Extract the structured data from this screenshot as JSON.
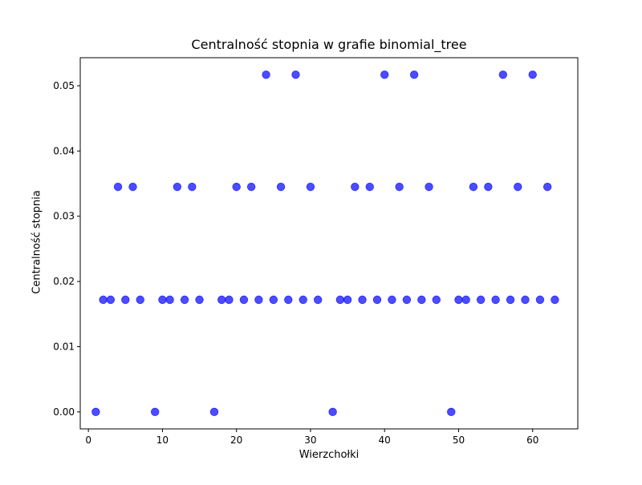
{
  "chart_data": {
    "type": "scatter",
    "title": "Centralność stopnia w grafie binomial_tree",
    "xlabel": "Wierzchołki",
    "ylabel": "Centralność stopnia",
    "xlim": [
      -1.1,
      66.1
    ],
    "ylim": [
      -0.0026,
      0.0543
    ],
    "x_ticks": [
      0,
      10,
      20,
      30,
      40,
      50,
      60
    ],
    "y_ticks": [
      0.0,
      0.01,
      0.02,
      0.03,
      0.04,
      0.05
    ],
    "y_tick_labels": [
      "0.00",
      "0.01",
      "0.02",
      "0.03",
      "0.04",
      "0.05"
    ],
    "grid": false,
    "marker_color": "#0000ff",
    "marker_alpha": 0.7,
    "series": [
      {
        "x": [
          1,
          2,
          3,
          4,
          5,
          6,
          7,
          9,
          10,
          11,
          12,
          13,
          14,
          15,
          17,
          18,
          19,
          20,
          21,
          22,
          23,
          24,
          25,
          26,
          27,
          28,
          29,
          30,
          31,
          33,
          34,
          35,
          36,
          37,
          38,
          39,
          40,
          41,
          42,
          43,
          44,
          45,
          46,
          47,
          49,
          50,
          51,
          52,
          53,
          54,
          55,
          56,
          57,
          58,
          59,
          60,
          61,
          62,
          63
        ],
        "y": [
          0.0,
          0.0172,
          0.0172,
          0.0345,
          0.0172,
          0.0345,
          0.0172,
          0.0,
          0.0172,
          0.0172,
          0.0345,
          0.0172,
          0.0345,
          0.0172,
          0.0,
          0.0172,
          0.0172,
          0.0345,
          0.0172,
          0.0345,
          0.0172,
          0.0517,
          0.0172,
          0.0345,
          0.0172,
          0.0517,
          0.0172,
          0.0345,
          0.0172,
          0.0,
          0.0172,
          0.0172,
          0.0345,
          0.0172,
          0.0345,
          0.0172,
          0.0517,
          0.0172,
          0.0345,
          0.0172,
          0.0517,
          0.0172,
          0.0345,
          0.0172,
          0.0,
          0.0172,
          0.0172,
          0.0345,
          0.0172,
          0.0345,
          0.0172,
          0.0517,
          0.0172,
          0.0345,
          0.0172,
          0.0517,
          0.0172,
          0.0345,
          0.0172
        ]
      }
    ]
  }
}
